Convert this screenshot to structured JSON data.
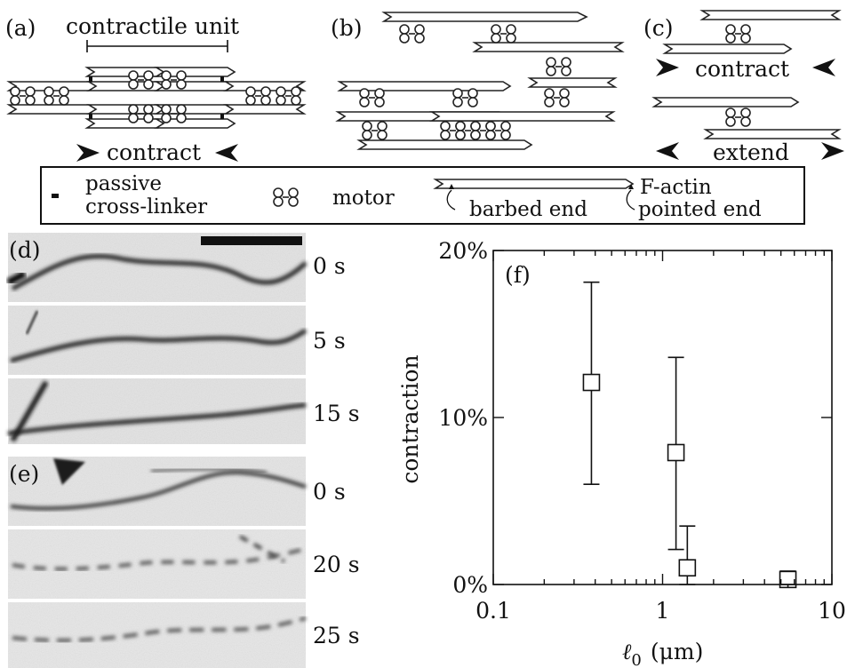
{
  "panels": {
    "a": {
      "label": "(a)",
      "unit_label": "contractile unit",
      "action": "contract"
    },
    "b": {
      "label": "(b)"
    },
    "c": {
      "label": "(c)",
      "top_action": "contract",
      "bottom_action": "extend"
    }
  },
  "legend": {
    "crosslinker_line1": "passive",
    "crosslinker_line2": "cross-linker",
    "motor": "motor",
    "factin": "F-actin",
    "barbed": "barbed end",
    "pointed": "pointed end"
  },
  "micrographs": {
    "d": {
      "label": "(d)",
      "times": [
        "0 s",
        "5 s",
        "15 s"
      ]
    },
    "e": {
      "label": "(e)",
      "times": [
        "0 s",
        "20 s",
        "25 s"
      ]
    }
  },
  "chart_data": {
    "type": "scatter",
    "panel_label": "(f)",
    "xlabel_symbol": "ℓ",
    "xlabel_sub": "0",
    "xlabel_unit": "(μm)",
    "ylabel": "contraction",
    "xscale": "log",
    "xlim": [
      0.1,
      10
    ],
    "ylim": [
      0,
      20
    ],
    "x_ticks": [
      {
        "value": 0.1,
        "label": "0.1"
      },
      {
        "value": 1,
        "label": "1"
      },
      {
        "value": 10,
        "label": "10"
      }
    ],
    "y_ticks": [
      {
        "value": 0,
        "label": "0%"
      },
      {
        "value": 10,
        "label": "10%"
      },
      {
        "value": 20,
        "label": "20%"
      }
    ],
    "points": [
      {
        "x": 0.38,
        "y": 12.1,
        "err_low": 6.0,
        "err_high": 18.1
      },
      {
        "x": 1.2,
        "y": 7.9,
        "err_low": 2.1,
        "err_high": 13.6
      },
      {
        "x": 1.4,
        "y": 1.0,
        "err_low": 0.0,
        "err_high": 3.5
      },
      {
        "x": 5.5,
        "y": 0.3,
        "err_low": 0.0,
        "err_high": 0.8
      }
    ]
  }
}
